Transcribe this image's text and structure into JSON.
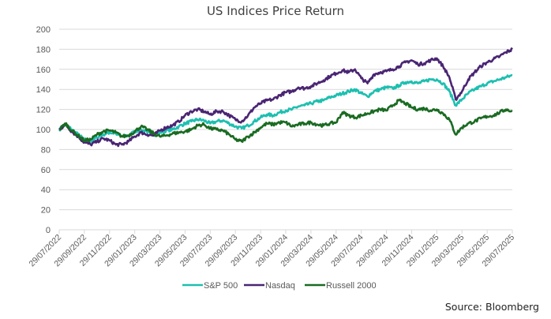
{
  "chart_data": {
    "type": "line",
    "title": "US Indices Price Return",
    "xlabel": "",
    "ylabel": "",
    "ylim": [
      0,
      200
    ],
    "yticks": [
      0,
      20,
      40,
      60,
      80,
      100,
      120,
      140,
      160,
      180,
      200
    ],
    "grid": true,
    "legend_position": "bottom",
    "x_tick_labels": [
      "29/07/2022",
      "29/09/2022",
      "29/11/2022",
      "29/01/2023",
      "29/03/2023",
      "29/05/2023",
      "29/07/2023",
      "29/09/2023",
      "29/11/2023",
      "29/01/2024",
      "29/03/2024",
      "29/05/2024",
      "29/07/2024",
      "29/09/2024",
      "29/11/2024",
      "29/01/2025",
      "29/03/2025",
      "29/05/2025",
      "29/07/2025"
    ],
    "x_months_from_start": [
      0,
      0.5,
      1,
      1.5,
      2,
      2.5,
      3,
      3.5,
      4,
      4.5,
      5,
      5.5,
      6,
      6.5,
      7,
      7.5,
      8,
      8.5,
      9,
      9.5,
      10,
      10.5,
      11,
      11.5,
      12,
      12.5,
      13,
      13.5,
      14,
      14.5,
      15,
      15.5,
      16,
      16.5,
      17,
      17.5,
      18,
      18.5,
      19,
      19.5,
      20,
      20.5,
      21,
      21.5,
      22,
      22.5,
      23,
      23.5,
      24,
      24.5,
      25,
      25.5,
      26,
      26.5,
      27,
      27.5,
      28,
      28.5,
      29,
      29.5,
      30,
      30.5,
      31,
      31.5,
      32,
      32.5,
      33,
      33.5,
      34,
      34.5,
      35,
      35.5,
      36
    ],
    "series": [
      {
        "name": "S&P 500",
        "color": "#1DBFB0",
        "values": [
          100,
          105,
          100,
          95,
          90,
          88,
          92,
          95,
          97,
          96,
          93,
          94,
          98,
          100,
          97,
          95,
          97,
          99,
          100,
          103,
          106,
          108,
          110,
          109,
          106,
          108,
          109,
          106,
          103,
          101,
          104,
          108,
          112,
          115,
          114,
          117,
          119,
          120,
          123,
          124,
          126,
          128,
          129,
          132,
          134,
          136,
          138,
          140,
          136,
          133,
          138,
          140,
          142,
          141,
          144,
          147,
          148,
          146,
          148,
          150,
          150,
          146,
          138,
          124,
          130,
          136,
          140,
          143,
          146,
          148,
          150,
          152,
          154
        ]
      },
      {
        "name": "Nasdaq",
        "color": "#4A2573",
        "values": [
          100,
          105,
          98,
          93,
          87,
          85,
          88,
          91,
          89,
          85,
          85,
          88,
          93,
          97,
          95,
          94,
          99,
          102,
          104,
          108,
          114,
          118,
          120,
          118,
          115,
          118,
          118,
          114,
          110,
          108,
          114,
          122,
          126,
          129,
          130,
          134,
          137,
          138,
          142,
          141,
          143,
          146,
          149,
          153,
          156,
          159,
          157,
          160,
          151,
          146,
          155,
          157,
          158,
          160,
          163,
          167,
          169,
          165,
          166,
          169,
          171,
          163,
          152,
          130,
          138,
          150,
          157,
          163,
          167,
          170,
          173,
          177,
          180
        ]
      },
      {
        "name": "Russell 2000",
        "color": "#1A6B22",
        "values": [
          100,
          106,
          99,
          94,
          89,
          90,
          95,
          98,
          99,
          97,
          93,
          94,
          98,
          103,
          100,
          96,
          93,
          94,
          96,
          97,
          98,
          100,
          104,
          105,
          101,
          100,
          99,
          95,
          90,
          88,
          93,
          97,
          102,
          106,
          105,
          107,
          107,
          103,
          105,
          106,
          107,
          105,
          104,
          106,
          107,
          117,
          114,
          112,
          114,
          116,
          118,
          120,
          119,
          124,
          129,
          126,
          122,
          120,
          121,
          119,
          120,
          116,
          110,
          95,
          102,
          106,
          108,
          111,
          113,
          114,
          117,
          120,
          118
        ]
      }
    ]
  },
  "source": "Source: Bloomberg"
}
